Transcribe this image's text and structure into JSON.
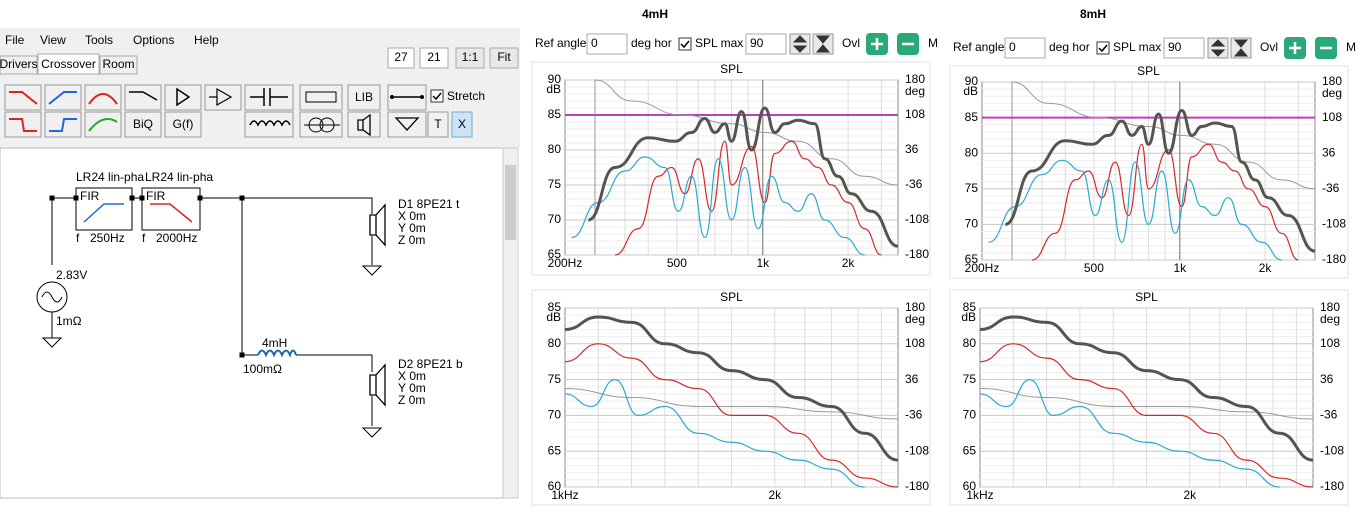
{
  "menu": [
    "File",
    "View",
    "Tools",
    "Options",
    "Help"
  ],
  "tabs": [
    "Drivers",
    "Crossover",
    "Room"
  ],
  "view_controls": [
    "27",
    "21",
    "1:1",
    "Fit"
  ],
  "toolbar": {
    "labels": [
      "LIB",
      "BiQ",
      "G(f)",
      "T",
      "X"
    ],
    "stretch": "Stretch"
  },
  "schematic": {
    "filters": [
      {
        "name": "LR24 lin-pha",
        "type": "FIR",
        "f_label": "f",
        "freq": "250Hz"
      },
      {
        "name": "LR24 lin-pha",
        "type": "FIR",
        "f_label": "f",
        "freq": "2000Hz"
      }
    ],
    "source": {
      "voltage": "2.83V",
      "resistance": "1mΩ"
    },
    "inductor": {
      "value": "4mH",
      "resistance": "100mΩ"
    },
    "drivers": [
      {
        "name": "D1 8PE21 t",
        "x": "X 0m",
        "y": "Y 0m",
        "z": "Z 0m"
      },
      {
        "name": "D2 8PE21 b",
        "x": "X 0m",
        "y": "Y 0m",
        "z": "Z 0m"
      }
    ]
  },
  "panels": [
    {
      "title": "4mH",
      "controls": {
        "ref_angle_label": "Ref angle",
        "ref_angle": "0",
        "deg_hor": "deg hor",
        "spl_max_label": "SPL max",
        "spl_max": "90",
        "ovl": "Ovl",
        "more": "M"
      },
      "plots": [
        {
          "title": "SPL",
          "y_unit": "dB",
          "y2_unit": "deg",
          "yticks": [
            90,
            85,
            80,
            75,
            70,
            65
          ],
          "y2ticks": [
            180,
            108,
            36,
            -36,
            -108,
            -180
          ],
          "xticks": [
            "200Hz",
            "500",
            "1k",
            "2k"
          ]
        },
        {
          "title": "SPL",
          "y_unit": "dB",
          "y2_unit": "deg",
          "yticks": [
            85,
            80,
            75,
            70,
            65,
            60
          ],
          "y2ticks": [
            180,
            108,
            36,
            -36,
            -108,
            -180
          ],
          "xticks": [
            "1kHz",
            "2k"
          ]
        }
      ]
    },
    {
      "title": "8mH",
      "controls": {
        "ref_angle_label": "Ref angle",
        "ref_angle": "0",
        "deg_hor": "deg hor",
        "spl_max_label": "SPL max",
        "spl_max": "90",
        "ovl": "Ovl",
        "more": "M"
      },
      "plots": [
        {
          "title": "SPL",
          "y_unit": "dB",
          "y2_unit": "deg",
          "yticks": [
            90,
            85,
            80,
            75,
            70,
            65
          ],
          "y2ticks": [
            180,
            108,
            36,
            -36,
            -108,
            -180
          ],
          "xticks": [
            "200Hz",
            "500",
            "1k",
            "2k"
          ]
        },
        {
          "title": "SPL",
          "y_unit": "dB",
          "y2_unit": "deg",
          "yticks": [
            85,
            80,
            75,
            70,
            65,
            60
          ],
          "y2ticks": [
            180,
            108,
            36,
            -36,
            -108,
            -180
          ],
          "xticks": [
            "1kHz",
            "2k"
          ]
        }
      ]
    }
  ]
}
